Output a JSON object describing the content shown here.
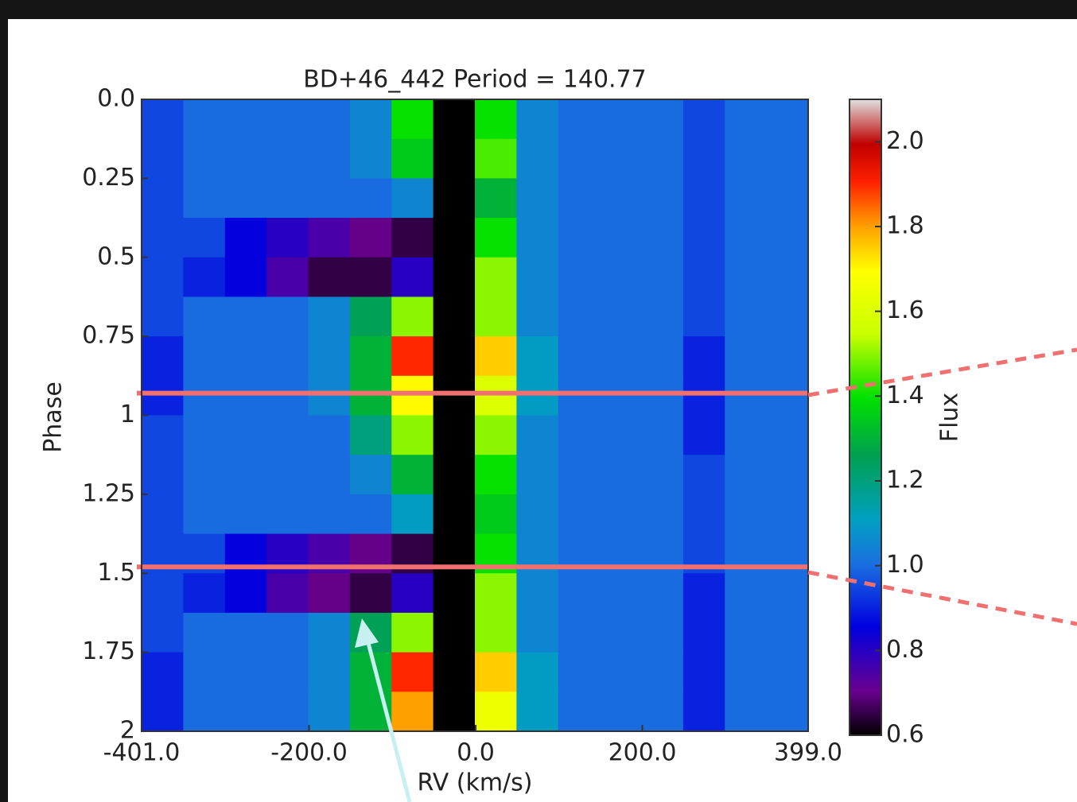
{
  "chart_data": {
    "type": "heatmap",
    "title": "BD+46_442 Period = 140.77",
    "x_label": "RV (km/s)",
    "y_label": "Phase",
    "colorbar_label": "Flux",
    "x": [
      -376,
      -326,
      -276,
      -226,
      -176,
      -126,
      -76,
      -26,
      24,
      74,
      124,
      174,
      224,
      274,
      324,
      374
    ],
    "y": [
      0.0625,
      0.1875,
      0.3125,
      0.4375,
      0.5625,
      0.6875,
      0.8125,
      0.9375,
      1.0625,
      1.1875,
      1.3125,
      1.4375,
      1.5625,
      1.6875,
      1.8125,
      1.9375
    ],
    "values": [
      [
        0.95,
        1.0,
        1.0,
        1.0,
        1.0,
        1.05,
        1.4,
        0.6,
        1.4,
        1.05,
        1.0,
        1.0,
        1.0,
        0.95,
        1.0,
        1.0
      ],
      [
        0.95,
        1.0,
        1.0,
        1.0,
        1.0,
        1.05,
        1.35,
        0.6,
        1.45,
        1.05,
        1.0,
        1.0,
        1.0,
        0.95,
        1.0,
        1.0
      ],
      [
        0.95,
        1.0,
        1.0,
        1.0,
        1.0,
        1.0,
        1.05,
        0.6,
        1.3,
        1.05,
        1.0,
        1.0,
        1.0,
        0.95,
        1.0,
        1.0
      ],
      [
        0.95,
        0.95,
        0.85,
        0.8,
        0.75,
        0.7,
        0.65,
        0.6,
        1.4,
        1.05,
        1.0,
        1.0,
        1.0,
        0.95,
        1.0,
        1.0
      ],
      [
        0.95,
        0.9,
        0.85,
        0.75,
        0.65,
        0.65,
        0.8,
        0.6,
        1.5,
        1.05,
        1.0,
        1.0,
        1.0,
        0.95,
        1.0,
        1.0
      ],
      [
        0.95,
        1.0,
        1.0,
        1.0,
        1.05,
        1.25,
        1.5,
        0.6,
        1.5,
        1.05,
        1.0,
        1.0,
        1.0,
        0.95,
        1.0,
        1.0
      ],
      [
        0.9,
        1.0,
        1.0,
        1.0,
        1.05,
        1.3,
        1.9,
        0.6,
        1.75,
        1.1,
        1.0,
        1.0,
        1.0,
        0.9,
        1.0,
        1.0
      ],
      [
        0.9,
        1.0,
        1.0,
        1.0,
        1.05,
        1.3,
        1.7,
        0.6,
        1.6,
        1.1,
        1.0,
        1.0,
        1.0,
        0.9,
        1.0,
        1.0
      ],
      [
        0.95,
        1.0,
        1.0,
        1.0,
        1.0,
        1.2,
        1.5,
        0.6,
        1.5,
        1.05,
        1.0,
        1.0,
        1.0,
        0.9,
        1.0,
        1.0
      ],
      [
        0.95,
        1.0,
        1.0,
        1.0,
        1.0,
        1.05,
        1.3,
        0.6,
        1.4,
        1.05,
        1.0,
        1.0,
        1.0,
        0.95,
        1.0,
        1.0
      ],
      [
        0.95,
        1.0,
        1.0,
        1.0,
        1.0,
        1.0,
        1.1,
        0.6,
        1.35,
        1.05,
        1.0,
        1.0,
        1.0,
        0.95,
        1.0,
        1.0
      ],
      [
        0.95,
        0.95,
        0.85,
        0.8,
        0.75,
        0.7,
        0.65,
        0.6,
        1.4,
        1.05,
        1.0,
        1.0,
        1.0,
        0.95,
        1.0,
        1.0
      ],
      [
        0.95,
        0.9,
        0.85,
        0.75,
        0.7,
        0.65,
        0.8,
        0.6,
        1.5,
        1.05,
        1.0,
        1.0,
        1.0,
        0.9,
        1.0,
        1.0
      ],
      [
        0.95,
        1.0,
        1.0,
        1.0,
        1.05,
        1.25,
        1.5,
        0.6,
        1.5,
        1.05,
        1.0,
        1.0,
        1.0,
        0.9,
        1.0,
        1.0
      ],
      [
        0.9,
        1.0,
        1.0,
        1.0,
        1.05,
        1.3,
        1.9,
        0.6,
        1.75,
        1.1,
        1.0,
        1.0,
        1.0,
        0.9,
        1.0,
        1.0
      ],
      [
        0.9,
        1.0,
        1.0,
        1.0,
        1.05,
        1.3,
        1.8,
        0.6,
        1.65,
        1.1,
        1.0,
        1.0,
        1.0,
        0.9,
        1.0,
        1.0
      ]
    ],
    "xlim": [
      -401,
      399
    ],
    "xticks": [
      {
        "value": -401,
        "label": "-401.0"
      },
      {
        "value": -200,
        "label": "-200.0"
      },
      {
        "value": 0,
        "label": "0.0"
      },
      {
        "value": 200,
        "label": "200.0"
      },
      {
        "value": 399,
        "label": "399.0"
      }
    ],
    "ylim": [
      0,
      2
    ],
    "yticks": [
      {
        "value": 0,
        "label": "0.0"
      },
      0.25,
      0.5,
      0.75,
      1,
      1.25,
      1.5,
      1.75,
      2
    ],
    "clim": [
      0.6,
      2.1
    ],
    "cticks": [
      0.6,
      0.8,
      {
        "value": 1,
        "label": "1.0"
      },
      1.2,
      1.4,
      1.6,
      1.8,
      {
        "value": 2,
        "label": "2.0"
      }
    ],
    "highlight_lines": [
      0.93,
      1.48
    ],
    "highlight_color": "#f07070"
  }
}
